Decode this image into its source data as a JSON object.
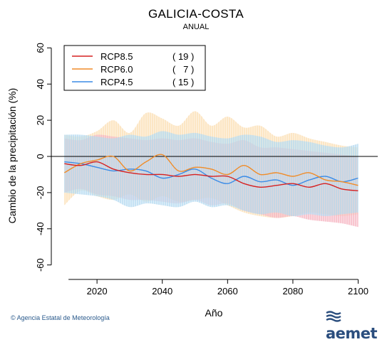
{
  "chart_data": {
    "type": "line",
    "title": "GALICIA-COSTA",
    "subtitle": "ANUAL",
    "xlabel": "Año",
    "ylabel": "Cambio de la precipitación (%)",
    "xlim": [
      2006,
      2106
    ],
    "ylim": [
      -68,
      68
    ],
    "xticks": [
      2020,
      2040,
      2060,
      2080,
      2100
    ],
    "yticks": [
      -60,
      -40,
      -20,
      0,
      20,
      40,
      60
    ],
    "reference_line": 0,
    "legend_position": "top-left",
    "series": [
      {
        "name": "RCP8.5",
        "count": "( 19 )",
        "color": "#d62020",
        "band_color": "#f4a9b8",
        "x": [
          2010,
          2015,
          2020,
          2025,
          2030,
          2035,
          2040,
          2045,
          2050,
          2055,
          2060,
          2065,
          2070,
          2075,
          2080,
          2085,
          2090,
          2095,
          2100
        ],
        "values": [
          -4,
          -5,
          -3,
          -7,
          -9,
          -10,
          -10,
          -11,
          -10,
          -11,
          -11,
          -15,
          -17,
          -16,
          -15,
          -17,
          -15,
          -18,
          -19
        ],
        "upper": [
          10,
          9,
          12,
          11,
          10,
          9,
          10,
          9,
          10,
          8,
          7,
          9,
          5,
          5,
          4,
          3,
          2,
          1,
          0
        ],
        "lower": [
          -20,
          -18,
          -21,
          -22,
          -24,
          -24,
          -25,
          -26,
          -24,
          -27,
          -26,
          -30,
          -32,
          -34,
          -33,
          -35,
          -36,
          -37,
          -39
        ]
      },
      {
        "name": "RCP6.0",
        "count": "(   7 )",
        "color": "#f08c28",
        "band_color": "#fbd9a8",
        "x": [
          2010,
          2015,
          2020,
          2025,
          2030,
          2035,
          2040,
          2045,
          2050,
          2055,
          2060,
          2065,
          2070,
          2075,
          2080,
          2085,
          2090,
          2095,
          2100
        ],
        "values": [
          -9,
          -4,
          -2,
          0,
          -8,
          -3,
          1,
          -8,
          -6,
          -7,
          -10,
          -5,
          -10,
          -9,
          -11,
          -9,
          -13,
          -14,
          -16
        ],
        "upper": [
          12,
          11,
          14,
          20,
          13,
          24,
          21,
          17,
          25,
          17,
          22,
          16,
          17,
          11,
          13,
          10,
          8,
          6,
          5
        ],
        "lower": [
          -27,
          -19,
          -22,
          -24,
          -21,
          -25,
          -22,
          -25,
          -24,
          -23,
          -27,
          -31,
          -33,
          -34,
          -33,
          -31,
          -32,
          -33,
          -32
        ]
      },
      {
        "name": "RCP4.5",
        "count": "( 15 )",
        "color": "#3c8ce6",
        "band_color": "#a9d4ee",
        "x": [
          2010,
          2015,
          2020,
          2025,
          2030,
          2035,
          2040,
          2045,
          2050,
          2055,
          2060,
          2065,
          2070,
          2075,
          2080,
          2085,
          2090,
          2095,
          2100
        ],
        "values": [
          -3,
          -4,
          -6,
          -8,
          -7,
          -8,
          -12,
          -10,
          -7,
          -12,
          -15,
          -11,
          -14,
          -13,
          -16,
          -13,
          -11,
          -14,
          -12
        ],
        "upper": [
          12,
          12,
          11,
          10,
          12,
          11,
          14,
          12,
          13,
          11,
          10,
          12,
          11,
          8,
          9,
          8,
          6,
          5,
          7
        ],
        "lower": [
          -20,
          -21,
          -22,
          -24,
          -28,
          -26,
          -27,
          -28,
          -25,
          -28,
          -27,
          -30,
          -32,
          -31,
          -33,
          -32,
          -33,
          -32,
          -31
        ]
      }
    ]
  },
  "footer": {
    "copyright": "© Agencia Estatal de Meteorología",
    "logo_text": "aemet"
  }
}
